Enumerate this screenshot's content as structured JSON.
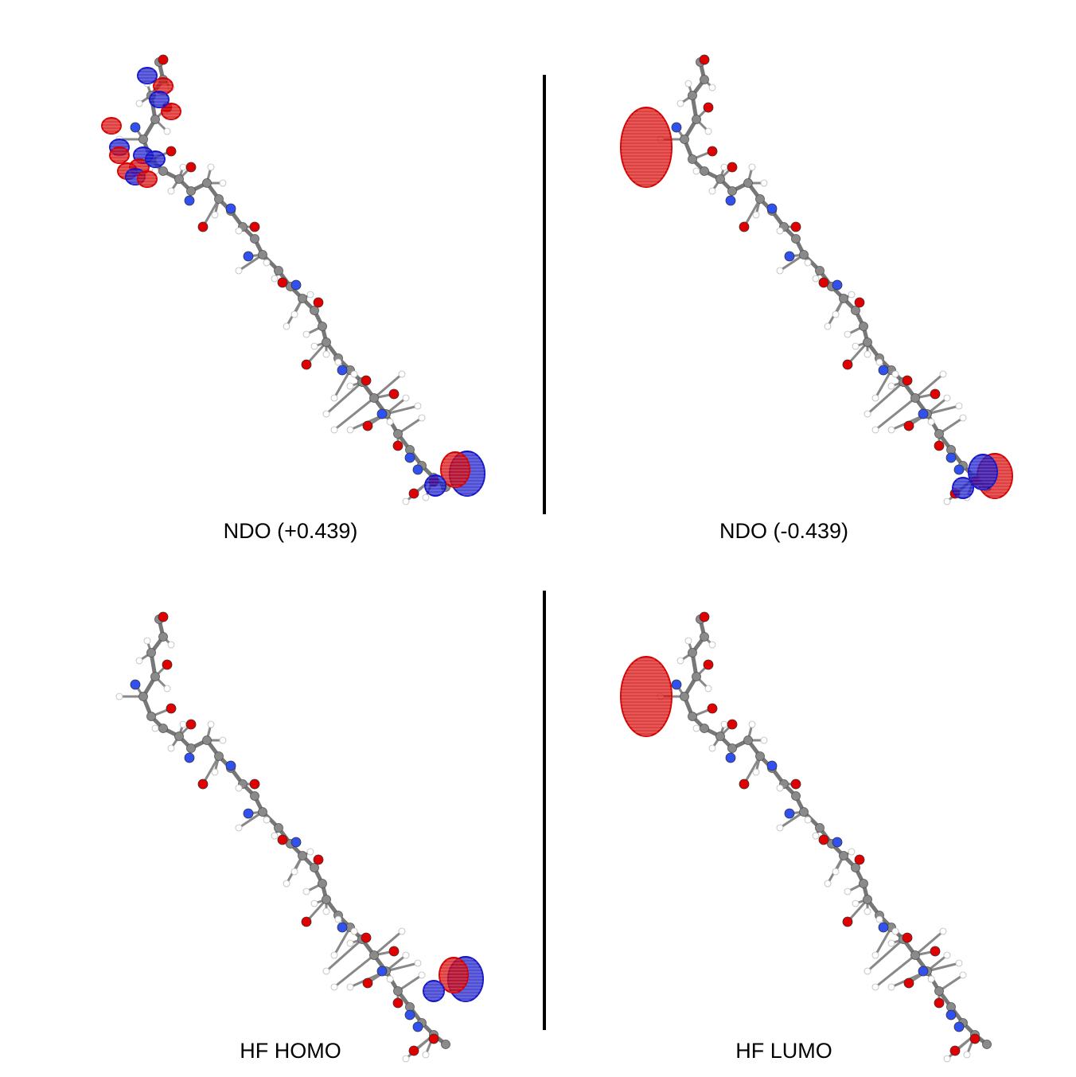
{
  "panels": [
    {
      "id": "ndo-plus",
      "caption": "NDO (+0.439)",
      "orbital_top": "distributed-small",
      "orbital_bottom": "carboxyl-lobes",
      "colors": {
        "positive": "#d40000",
        "negative": "#1414c8"
      }
    },
    {
      "id": "ndo-minus",
      "caption": "NDO (-0.439)",
      "orbital_top": "large-lobe",
      "orbital_bottom": "carboxyl-lobes",
      "colors": {
        "positive": "#d40000",
        "negative": "#1414c8"
      }
    },
    {
      "id": "hf-homo",
      "caption": "HF HOMO",
      "orbital_top": "none",
      "orbital_bottom": "carboxyl-lobes",
      "colors": {
        "positive": "#d40000",
        "negative": "#1414c8"
      }
    },
    {
      "id": "hf-lumo",
      "caption": "HF LUMO",
      "orbital_top": "large-lobe",
      "orbital_bottom": "none",
      "colors": {
        "positive": "#d40000",
        "negative": "#1414c8"
      }
    }
  ],
  "atom_colors": {
    "carbon": "#8a8a8a",
    "oxygen": "#e00000",
    "nitrogen": "#3050f0",
    "hydrogen": "#ffffff"
  }
}
